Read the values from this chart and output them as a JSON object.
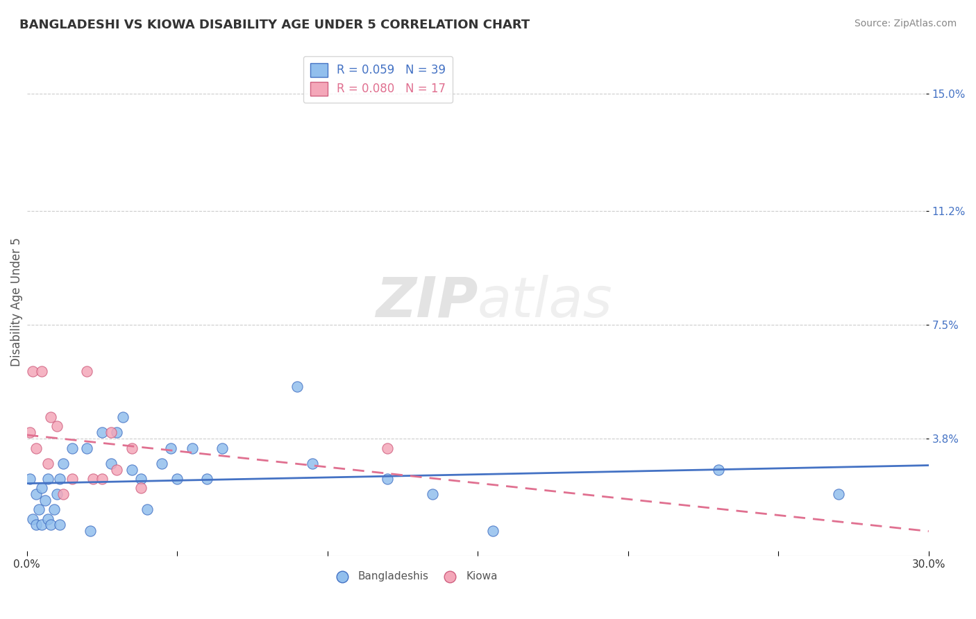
{
  "title": "BANGLADESHI VS KIOWA DISABILITY AGE UNDER 5 CORRELATION CHART",
  "source": "Source: ZipAtlas.com",
  "ylabel": "Disability Age Under 5",
  "ytick_labels": [
    "15.0%",
    "11.2%",
    "7.5%",
    "3.8%"
  ],
  "ytick_values": [
    0.15,
    0.112,
    0.075,
    0.038
  ],
  "xlim": [
    0.0,
    0.3
  ],
  "ylim": [
    0.0,
    0.165
  ],
  "legend_r_bangladeshi": "R = 0.059",
  "legend_n_bangladeshi": "N = 39",
  "legend_r_kiowa": "R = 0.080",
  "legend_n_kiowa": "N = 17",
  "color_bangladeshi": "#92BFED",
  "color_kiowa": "#F4A7B9",
  "color_line_bangladeshi": "#4472C4",
  "color_line_kiowa": "#E07090",
  "background_color": "#FFFFFF",
  "watermark_zip": "ZIP",
  "watermark_atlas": "atlas",
  "bangladeshi_x": [
    0.001,
    0.002,
    0.003,
    0.003,
    0.004,
    0.005,
    0.005,
    0.006,
    0.007,
    0.007,
    0.008,
    0.009,
    0.01,
    0.011,
    0.011,
    0.012,
    0.015,
    0.02,
    0.021,
    0.025,
    0.028,
    0.03,
    0.032,
    0.035,
    0.038,
    0.04,
    0.045,
    0.048,
    0.05,
    0.055,
    0.06,
    0.065,
    0.09,
    0.095,
    0.12,
    0.135,
    0.155,
    0.23,
    0.27
  ],
  "bangladeshi_y": [
    0.025,
    0.012,
    0.01,
    0.02,
    0.015,
    0.01,
    0.022,
    0.018,
    0.012,
    0.025,
    0.01,
    0.015,
    0.02,
    0.01,
    0.025,
    0.03,
    0.035,
    0.035,
    0.008,
    0.04,
    0.03,
    0.04,
    0.045,
    0.028,
    0.025,
    0.015,
    0.03,
    0.035,
    0.025,
    0.035,
    0.025,
    0.035,
    0.055,
    0.03,
    0.025,
    0.02,
    0.008,
    0.028,
    0.02
  ],
  "kiowa_x": [
    0.001,
    0.002,
    0.003,
    0.005,
    0.007,
    0.008,
    0.01,
    0.012,
    0.015,
    0.02,
    0.022,
    0.025,
    0.028,
    0.03,
    0.035,
    0.038,
    0.12
  ],
  "kiowa_y": [
    0.04,
    0.06,
    0.035,
    0.06,
    0.03,
    0.045,
    0.042,
    0.02,
    0.025,
    0.06,
    0.025,
    0.025,
    0.04,
    0.028,
    0.035,
    0.022,
    0.035
  ]
}
